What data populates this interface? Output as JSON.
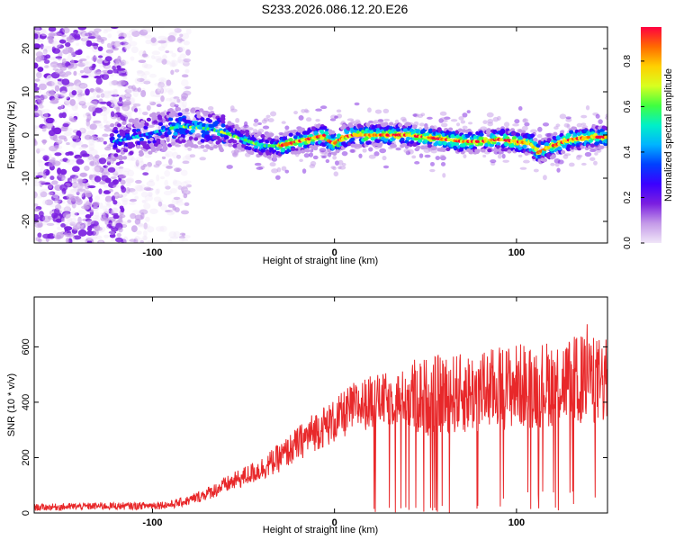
{
  "title": "S233.2026.086.12.20.E26",
  "colors": {
    "background": "#ffffff",
    "frame": "#000000",
    "snr_line": "#e8282a",
    "colormap": [
      "#f0e6f8",
      "#c49ae8",
      "#7b1fe0",
      "#3b00ff",
      "#0040ff",
      "#00b4ff",
      "#00f0c8",
      "#40ff40",
      "#d8ff20",
      "#ffd000",
      "#ff6a00",
      "#ff0040"
    ]
  },
  "chart_data": [
    {
      "type": "heatmap",
      "title": "S233.2026.086.12.20.E26",
      "xlabel": "Height of straight line (km)",
      "ylabel": "Frequency (Hz)",
      "xlim": [
        -165,
        150
      ],
      "ylim": [
        -25,
        25
      ],
      "xticks": [
        -100,
        0,
        100
      ],
      "yticks": [
        -20,
        -10,
        0,
        10,
        20
      ],
      "colorbar": {
        "label": "Normalized spectral amplitude",
        "range": [
          0.0,
          0.95
        ],
        "ticks": [
          0.0,
          0.2,
          0.4,
          0.6,
          0.8
        ]
      },
      "ridge_frequency_track": {
        "x": [
          -120,
          -100,
          -85,
          -70,
          -60,
          -50,
          -40,
          -30,
          -25,
          -15,
          -10,
          -5,
          -3,
          0,
          5,
          10,
          20,
          30,
          40,
          50,
          60,
          70,
          80,
          90,
          100,
          108,
          112,
          120,
          130,
          140,
          150
        ],
        "y": [
          -1.5,
          0.5,
          2,
          1.5,
          0.5,
          -1,
          -2.5,
          -2.5,
          -2,
          -1,
          -0.5,
          0,
          -1.5,
          -2,
          -0.5,
          0,
          0,
          0,
          0,
          -0.5,
          -1,
          -1.5,
          -1.5,
          -1,
          -1.5,
          -2,
          -4,
          -2.5,
          -1,
          -0.5,
          -0.5
        ]
      },
      "noise_regions": [
        {
          "x_range": [
            -165,
            -115
          ],
          "description": "broadband noise"
        },
        {
          "x_range": [
            -115,
            -80
          ],
          "description": "sparse noise"
        }
      ]
    },
    {
      "type": "line",
      "xlabel": "Height of straight line (km)",
      "ylabel": "SNR (10 * v/v)",
      "xlim": [
        -165,
        150
      ],
      "ylim": [
        0,
        780
      ],
      "xticks": [
        -100,
        0,
        100
      ],
      "yticks": [
        0,
        200,
        400,
        600
      ],
      "series": [
        {
          "name": "SNR",
          "x": [
            -165,
            -150,
            -130,
            -110,
            -100,
            -90,
            -80,
            -70,
            -60,
            -50,
            -40,
            -30,
            -20,
            -10,
            0,
            10,
            20,
            30,
            40,
            50,
            60,
            70,
            80,
            90,
            100,
            110,
            120,
            130,
            140,
            150
          ],
          "y": [
            20,
            22,
            25,
            25,
            28,
            30,
            45,
            70,
            100,
            130,
            160,
            200,
            250,
            300,
            330,
            380,
            400,
            410,
            420,
            420,
            430,
            430,
            440,
            450,
            460,
            460,
            470,
            480,
            480,
            470
          ]
        }
      ]
    }
  ]
}
